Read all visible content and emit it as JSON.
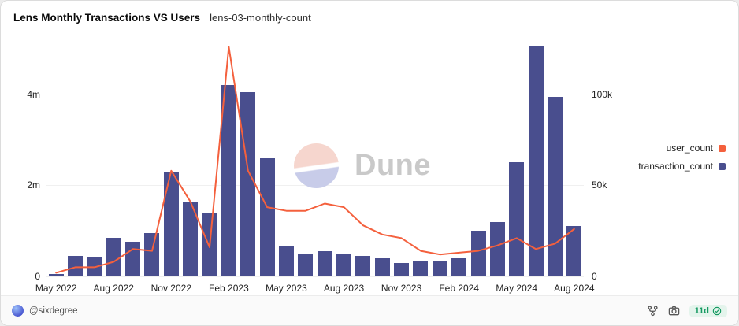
{
  "chart_data": {
    "type": "bar+line",
    "title": "Lens Monthly Transactions VS Users",
    "subtitle": "lens-03-monthly-count",
    "x": [
      "May 2022",
      "Jun 2022",
      "Jul 2022",
      "Aug 2022",
      "Sep 2022",
      "Oct 2022",
      "Nov 2022",
      "Dec 2022",
      "Jan 2023",
      "Feb 2023",
      "Mar 2023",
      "Apr 2023",
      "May 2023",
      "Jun 2023",
      "Jul 2023",
      "Aug 2023",
      "Sep 2023",
      "Oct 2023",
      "Nov 2023",
      "Dec 2023",
      "Jan 2024",
      "Feb 2024",
      "Mar 2024",
      "Apr 2024",
      "May 2024",
      "Jun 2024",
      "Jul 2024",
      "Aug 2024"
    ],
    "x_tick_every": 3,
    "series": [
      {
        "name": "transaction_count",
        "type": "bar",
        "axis": "left",
        "color": "#494e8e",
        "values": [
          60000,
          450000,
          420000,
          850000,
          760000,
          950000,
          2300000,
          1650000,
          1400000,
          4200000,
          4050000,
          2600000,
          650000,
          500000,
          560000,
          500000,
          450000,
          400000,
          300000,
          350000,
          350000,
          400000,
          1000000,
          1200000,
          2500000,
          5050000,
          3950000,
          1100000
        ]
      },
      {
        "name": "user_count",
        "type": "line",
        "axis": "right",
        "color": "#f4603d",
        "values": [
          2000,
          5000,
          5000,
          8000,
          15000,
          14000,
          58000,
          41000,
          16000,
          126000,
          58000,
          38000,
          36000,
          36000,
          40000,
          38000,
          28000,
          23000,
          21000,
          14000,
          12000,
          13000,
          14000,
          17000,
          21000,
          15000,
          18000,
          26000
        ]
      }
    ],
    "left_axis": {
      "max_value": 5100000,
      "ticks": [
        {
          "label": "0",
          "value": 0
        },
        {
          "label": "2m",
          "value": 2000000
        },
        {
          "label": "4m",
          "value": 4000000
        }
      ]
    },
    "right_axis": {
      "max_value": 127500,
      "ticks": [
        {
          "label": "0",
          "value": 0
        },
        {
          "label": "50k",
          "value": 50000
        },
        {
          "label": "100k",
          "value": 100000
        }
      ]
    },
    "legend": [
      {
        "label": "user_count",
        "color": "#f4603d"
      },
      {
        "label": "transaction_count",
        "color": "#494e8e"
      }
    ],
    "legend_position": "right",
    "grid": "horizontal-faint"
  },
  "watermark": {
    "text": "Dune"
  },
  "footer": {
    "author": "@sixdegree",
    "freshness": "11d"
  }
}
